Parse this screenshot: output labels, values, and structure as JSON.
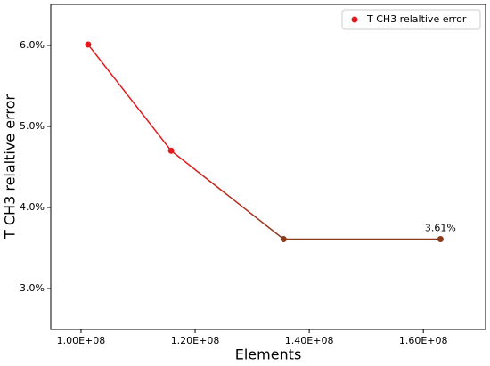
{
  "chart_data": {
    "type": "line",
    "x_label": "Elements",
    "y_label": "T CH3 relaltive error",
    "x": [
      101250000,
      115800000,
      135500000,
      163000000
    ],
    "series": [
      {
        "name": "T CH3 relaltive error",
        "color": "#e41a1c",
        "line_gradient": [
          "#e41a1c",
          "#8b3a1a"
        ],
        "marker_colors": [
          "#e41a1c",
          "#e41a1c",
          "#8b3a1a",
          "#8b3a1a"
        ],
        "values": [
          6.01,
          4.7,
          3.61,
          3.61
        ]
      }
    ],
    "annotations": [
      {
        "text": "3.61%",
        "point": 3
      }
    ],
    "xlim": [
      94700000,
      170900000
    ],
    "ylim": [
      2.495,
      6.505
    ],
    "xticks": [
      {
        "value": 100000000,
        "label": "1.00E+08"
      },
      {
        "value": 120000000,
        "label": "1.20E+08"
      },
      {
        "value": 140000000,
        "label": "1.40E+08"
      },
      {
        "value": 160000000,
        "label": "1.60E+08"
      }
    ],
    "yticks": [
      {
        "value": 3.0,
        "label": "3.0%"
      },
      {
        "value": 4.0,
        "label": "4.0%"
      },
      {
        "value": 5.0,
        "label": "5.0%"
      },
      {
        "value": 6.0,
        "label": "6.0%"
      }
    ],
    "legend": "upper right"
  }
}
